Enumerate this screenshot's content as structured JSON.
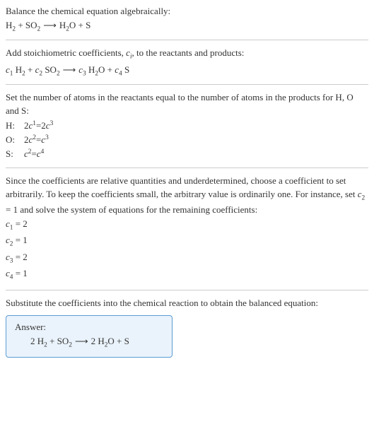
{
  "section1": {
    "title": "Balance the chemical equation algebraically:",
    "equation": {
      "lhs": [
        {
          "base": "H",
          "sub": "2"
        },
        {
          "plus": true
        },
        {
          "base": "SO",
          "sub": "2"
        }
      ],
      "rhs": [
        {
          "base": "H",
          "sub": "2",
          "base2": "O"
        },
        {
          "plus": true
        },
        {
          "base": "S"
        }
      ]
    }
  },
  "section2": {
    "intro_a": "Add stoichiometric coefficients, ",
    "ci_base": "c",
    "ci_sub": "i",
    "intro_b": ", to the reactants and products:",
    "equation": {
      "lhs": [
        {
          "coef": "c",
          "coefsub": "1",
          "sp": true,
          "base": "H",
          "sub": "2"
        },
        {
          "plus": true
        },
        {
          "coef": "c",
          "coefsub": "2",
          "sp": true,
          "base": "SO",
          "sub": "2"
        }
      ],
      "rhs": [
        {
          "coef": "c",
          "coefsub": "3",
          "sp": true,
          "base": "H",
          "sub": "2",
          "base2": "O"
        },
        {
          "plus": true
        },
        {
          "coef": "c",
          "coefsub": "4",
          "sp": true,
          "base": "S"
        }
      ]
    }
  },
  "section3": {
    "text": "Set the number of atoms in the reactants equal to the number of atoms in the products for H, O and S:",
    "rows": [
      {
        "label": "H:",
        "lhs_pre": "2 ",
        "lhs_c": "c",
        "lhs_sub": "1",
        "eq": " = ",
        "rhs_pre": "2 ",
        "rhs_c": "c",
        "rhs_sub": "3"
      },
      {
        "label": "O:",
        "lhs_pre": "2 ",
        "lhs_c": "c",
        "lhs_sub": "2",
        "eq": " = ",
        "rhs_pre": "",
        "rhs_c": "c",
        "rhs_sub": "3"
      },
      {
        "label": "S:",
        "lhs_pre": "",
        "lhs_c": "c",
        "lhs_sub": "2",
        "eq": " = ",
        "rhs_pre": "",
        "rhs_c": "c",
        "rhs_sub": "4"
      }
    ]
  },
  "section4": {
    "text_a": "Since the coefficients are relative quantities and underdetermined, choose a coefficient to set arbitrarily. To keep the coefficients small, the arbitrary value is ordinarily one. For instance, set ",
    "c_base": "c",
    "c_sub": "2",
    "c_eq": " = 1",
    "text_b": " and solve the system of equations for the remaining coefficients:",
    "solutions": [
      {
        "c": "c",
        "sub": "1",
        "val": " = 2"
      },
      {
        "c": "c",
        "sub": "2",
        "val": " = 1"
      },
      {
        "c": "c",
        "sub": "3",
        "val": " = 2"
      },
      {
        "c": "c",
        "sub": "4",
        "val": " = 1"
      }
    ]
  },
  "section5": {
    "text": "Substitute the coefficients into the chemical reaction to obtain the balanced equation:",
    "answer_label": "Answer:",
    "equation": {
      "lhs": [
        {
          "coefnum": "2 ",
          "base": "H",
          "sub": "2"
        },
        {
          "plus": true
        },
        {
          "base": "SO",
          "sub": "2"
        }
      ],
      "rhs": [
        {
          "coefnum": "2 ",
          "base": "H",
          "sub": "2",
          "base2": "O"
        },
        {
          "plus": true
        },
        {
          "base": "S"
        }
      ]
    }
  },
  "colors": {
    "rule": "#cccccc",
    "text": "#333333",
    "box_border": "#5b9bd5",
    "box_bg": "#eaf3fb"
  }
}
